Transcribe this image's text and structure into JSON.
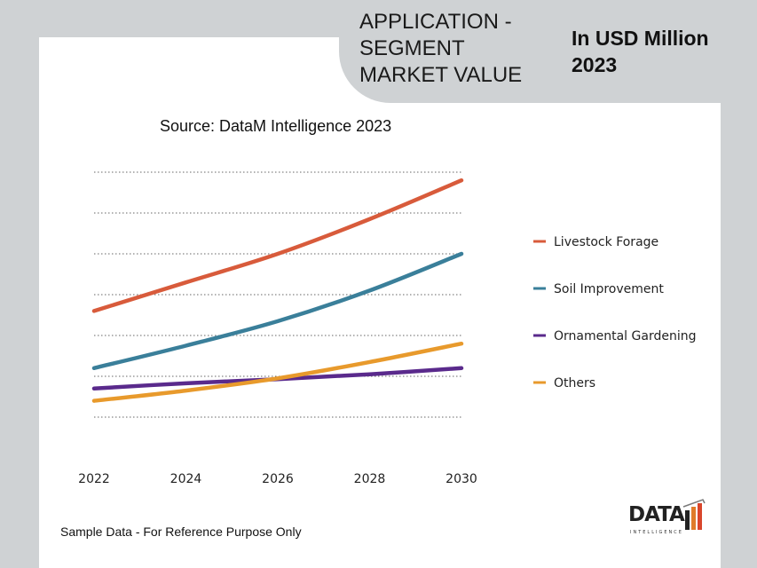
{
  "header": {
    "title_lines": [
      "APPLICATION -",
      "SEGMENT",
      "MARKET VALUE"
    ],
    "unit_lines": [
      "In USD Million",
      "2023"
    ]
  },
  "source": "Source: DataM Intelligence 2023",
  "footer": "Sample Data - For Reference Purpose Only",
  "logo": {
    "text": "DATA",
    "subtext": "INTELLIGENCE"
  },
  "chart_data": {
    "type": "line",
    "x": [
      2022,
      2024,
      2026,
      2028,
      2030
    ],
    "x_tick_labels": [
      "2022",
      "2024",
      "2026",
      "2028",
      "2030"
    ],
    "ylim": [
      0,
      7
    ],
    "grid": true,
    "legend_position": "right",
    "series": [
      {
        "name": "Livestock Forage",
        "color": "#d85b3b",
        "values": [
          3.6,
          4.3,
          5.0,
          5.85,
          6.8
        ]
      },
      {
        "name": "Soil Improvement",
        "color": "#3a7f9a",
        "values": [
          2.2,
          2.75,
          3.35,
          4.1,
          5.0
        ]
      },
      {
        "name": "Ornamental Gardening",
        "color": "#5a2a8c",
        "values": [
          1.7,
          1.83,
          1.93,
          2.05,
          2.2
        ]
      },
      {
        "name": "Others",
        "color": "#e89a2c",
        "values": [
          1.4,
          1.65,
          1.95,
          2.35,
          2.8
        ]
      }
    ]
  }
}
